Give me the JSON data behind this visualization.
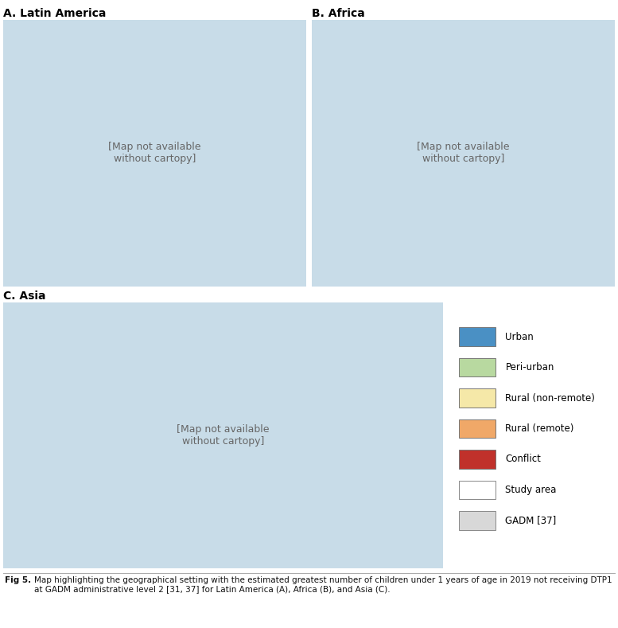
{
  "title_A": "A. Latin America",
  "title_B": "B. Africa",
  "title_C": "C. Asia",
  "fig_label": "Fig 5.",
  "fig_caption_body": "  Map highlighting the geographical setting with the estimated greatest number of children under 1 years of age in 2019 not receiving DTP1 at GADM administrative level 2 [31, 37] for Latin America (A), Africa (B), and Asia (C).",
  "legend_items": [
    {
      "label": "Urban",
      "facecolor": "#4A90C4",
      "edgecolor": "#777777"
    },
    {
      "label": "Peri-urban",
      "facecolor": "#B8D9A0",
      "edgecolor": "#777777"
    },
    {
      "label": "Rural (non-remote)",
      "facecolor": "#F5E8A8",
      "edgecolor": "#777777"
    },
    {
      "label": "Rural (remote)",
      "facecolor": "#F0A868",
      "edgecolor": "#777777"
    },
    {
      "label": "Conflict",
      "facecolor": "#C0312B",
      "edgecolor": "#777777"
    },
    {
      "label": "Study area",
      "facecolor": "#FFFFFF",
      "edgecolor": "#888888"
    },
    {
      "label": "GADM [37]",
      "facecolor": "#D8D8D8",
      "edgecolor": "#888888"
    }
  ],
  "background_color": "#FFFFFF",
  "ocean_color": "#FFFFFF",
  "land_base": "#F5E8A8",
  "border_color": "#AAAAAA",
  "title_fontsize": 10,
  "caption_fontsize": 7.5,
  "legend_fontsize": 8.5,
  "caption_refs_color": "#1155CC"
}
